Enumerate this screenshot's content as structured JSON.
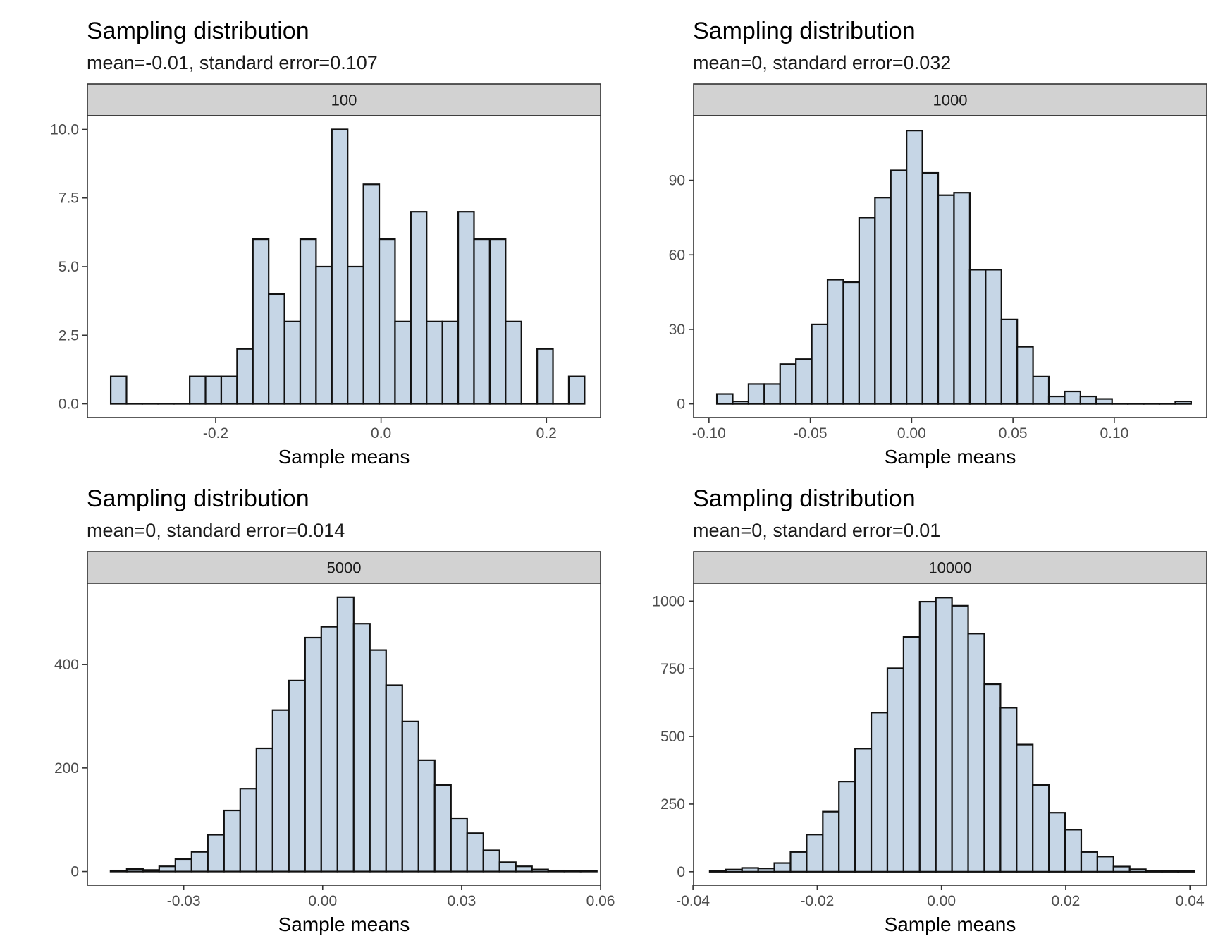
{
  "colors": {
    "bar_fill": "#c6d6e6",
    "bar_stroke": "#111111",
    "strip_fill": "#d2d2d2",
    "panel_border": "#333333"
  },
  "chart_data": [
    {
      "type": "bar",
      "title": "Sampling distribution",
      "subtitle": "mean=-0.01, standard error=0.107",
      "facet": "100",
      "xlabel": "Sample means",
      "ylabel": "",
      "xlim": [
        -0.3551,
        0.2654
      ],
      "ylim": [
        -0.5,
        10.5
      ],
      "xticks": [
        {
          "v": -0.2,
          "label": "-0.2"
        },
        {
          "v": 0.0,
          "label": "0.0"
        },
        {
          "v": 0.2,
          "label": "0.2"
        }
      ],
      "yticks": [
        {
          "v": 0,
          "label": "0.0"
        },
        {
          "v": 2.5,
          "label": "2.5"
        },
        {
          "v": 5,
          "label": "5.0"
        },
        {
          "v": 7.5,
          "label": "7.5"
        },
        {
          "v": 10,
          "label": "10.0"
        }
      ],
      "bins": {
        "start": -0.3269,
        "width": 0.0191
      },
      "values": [
        1,
        0,
        0,
        0,
        0,
        1,
        1,
        1,
        2,
        6,
        4,
        3,
        6,
        5,
        10,
        5,
        8,
        6,
        3,
        7,
        3,
        3,
        7,
        6,
        6,
        3,
        0,
        2,
        0,
        1
      ]
    },
    {
      "type": "bar",
      "title": "Sampling distribution",
      "subtitle": "mean=0, standard error=0.032",
      "facet": "1000",
      "xlabel": "Sample means",
      "ylabel": "",
      "xlim": [
        -0.1076,
        0.1456
      ],
      "ylim": [
        -5.5,
        116
      ],
      "xticks": [
        {
          "v": -0.1,
          "label": "-0.10"
        },
        {
          "v": -0.05,
          "label": "-0.05"
        },
        {
          "v": 0.0,
          "label": "0.00"
        },
        {
          "v": 0.05,
          "label": "0.05"
        },
        {
          "v": 0.1,
          "label": "0.10"
        }
      ],
      "yticks": [
        {
          "v": 0,
          "label": "0"
        },
        {
          "v": 30,
          "label": "30"
        },
        {
          "v": 60,
          "label": "60"
        },
        {
          "v": 90,
          "label": "90"
        }
      ],
      "bins": {
        "start": -0.0961,
        "width": 0.0078
      },
      "values": [
        4,
        1,
        8,
        8,
        16,
        18,
        32,
        50,
        49,
        75,
        83,
        94,
        110,
        93,
        84,
        85,
        54,
        54,
        34,
        23,
        11,
        3,
        5,
        3,
        2,
        0,
        0,
        0,
        0,
        1
      ]
    },
    {
      "type": "bar",
      "title": "Sampling distribution",
      "subtitle": "mean=0, standard error=0.014",
      "facet": "5000",
      "xlabel": "Sample means",
      "ylabel": "",
      "xlim": [
        -0.0508,
        0.06
      ],
      "ylim": [
        -26.5,
        557
      ],
      "xticks": [
        {
          "v": -0.03,
          "label": "-0.03"
        },
        {
          "v": 0.0,
          "label": "0.00"
        },
        {
          "v": 0.03,
          "label": "0.03"
        },
        {
          "v": 0.06,
          "label": "0.06"
        }
      ],
      "yticks": [
        {
          "v": 0,
          "label": "0"
        },
        {
          "v": 200,
          "label": "200"
        },
        {
          "v": 400,
          "label": "400"
        }
      ],
      "bins": {
        "start": -0.0458,
        "width": 0.0035
      },
      "values": [
        2,
        5,
        3,
        10,
        24,
        38,
        71,
        118,
        160,
        238,
        312,
        369,
        452,
        473,
        530,
        479,
        428,
        360,
        290,
        215,
        167,
        103,
        74,
        41,
        18,
        10,
        4,
        2,
        1,
        1
      ]
    },
    {
      "type": "bar",
      "title": "Sampling distribution",
      "subtitle": "mean=0, standard error=0.01",
      "facet": "10000",
      "xlabel": "Sample means",
      "ylabel": "",
      "xlim": [
        -0.0399,
        0.0427
      ],
      "ylim": [
        -50,
        1066
      ],
      "xticks": [
        {
          "v": -0.04,
          "label": "-0.04"
        },
        {
          "v": -0.02,
          "label": "-0.02"
        },
        {
          "v": 0.0,
          "label": "0.00"
        },
        {
          "v": 0.02,
          "label": "0.02"
        },
        {
          "v": 0.04,
          "label": "0.04"
        }
      ],
      "yticks": [
        {
          "v": 0,
          "label": "0"
        },
        {
          "v": 250,
          "label": "250"
        },
        {
          "v": 500,
          "label": "500"
        },
        {
          "v": 750,
          "label": "750"
        },
        {
          "v": 1000,
          "label": "1000"
        }
      ],
      "bins": {
        "start": -0.0373,
        "width": 0.0026
      },
      "values": [
        2,
        8,
        14,
        12,
        32,
        73,
        137,
        222,
        333,
        455,
        588,
        752,
        868,
        998,
        1013,
        983,
        880,
        693,
        606,
        470,
        320,
        218,
        155,
        73,
        56,
        19,
        9,
        3,
        4,
        3
      ]
    }
  ]
}
